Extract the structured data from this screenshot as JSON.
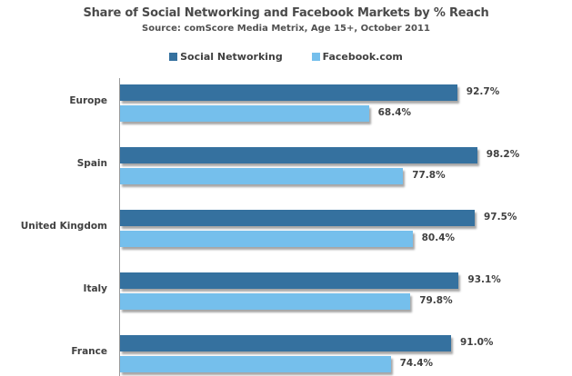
{
  "chart_data": {
    "type": "bar",
    "orientation": "horizontal",
    "title": "Share of Social Networking and Facebook Markets by % Reach",
    "subtitle": "Source: comScore Media Metrix, Age 15+, October 2011",
    "xlabel": "",
    "ylabel": "",
    "categories": [
      "Europe",
      "Spain",
      "United Kingdom",
      "Italy",
      "France"
    ],
    "series": [
      {
        "name": "Social Networking",
        "color": "#35719f",
        "values": [
          92.7,
          98.2,
          97.5,
          93.1,
          91.0
        ],
        "labels": [
          "92.7%",
          "98.2%",
          "97.5%",
          "93.1%",
          "91.0%"
        ]
      },
      {
        "name": "Facebook.com",
        "color": "#75bfec",
        "values": [
          68.4,
          77.8,
          80.4,
          79.8,
          74.4
        ],
        "labels": [
          "68.4%",
          "77.8%",
          "80.4%",
          "79.8%",
          "74.4%"
        ]
      }
    ],
    "xlim": [
      0,
      100
    ],
    "grid": false,
    "legend_position": "top",
    "data_labels": true
  },
  "header": {
    "title": "Share of Social Networking and Facebook Markets by % Reach",
    "subtitle": "Source: comScore Media Metrix, Age 15+, October 2011"
  },
  "legend": [
    {
      "label": "Social Networking",
      "color": "#35719f"
    },
    {
      "label": "Facebook.com",
      "color": "#75bfec"
    }
  ]
}
